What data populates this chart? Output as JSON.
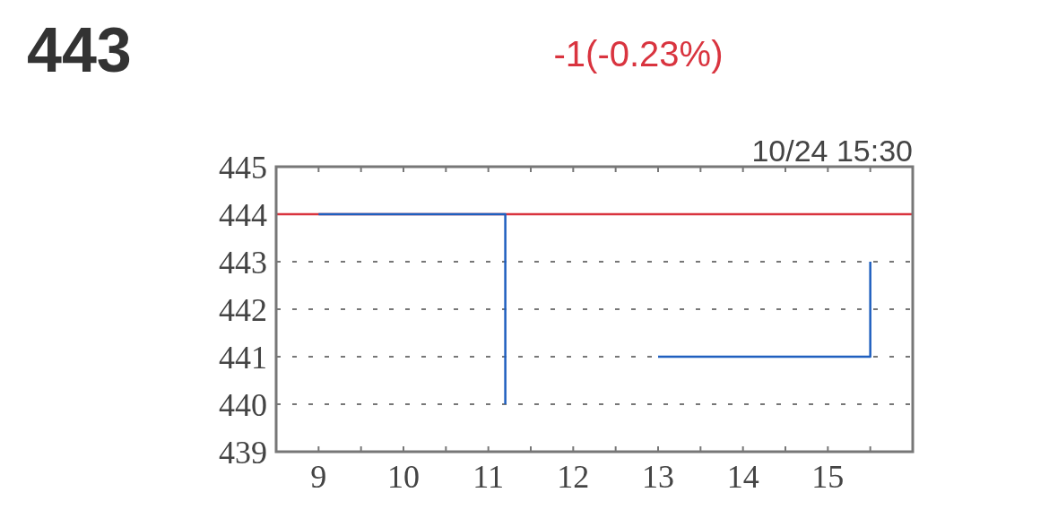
{
  "chart_data": {
    "type": "line",
    "title": "443",
    "subtitle": "-1(-0.23%)",
    "annotations": [
      "10/24 15:30"
    ],
    "x": [
      9,
      11.2,
      11.2,
      12,
      13,
      15.5,
      15.5
    ],
    "series": [
      {
        "color": "#1f5fbf",
        "values": [
          444,
          444,
          440,
          null,
          441,
          441,
          443
        ]
      }
    ],
    "ref_lines": [
      {
        "axis": "y",
        "value": 444,
        "color": "#d9343f"
      }
    ],
    "xlim": [
      8.5,
      16
    ],
    "xticks": [
      {
        "value": 8.5,
        "label": null
      },
      9,
      {
        "value": 9.5,
        "label": null
      },
      10,
      {
        "value": 10.5,
        "label": null
      },
      11,
      {
        "value": 11.5,
        "label": null
      },
      12,
      {
        "value": 12.5,
        "label": null
      },
      13,
      {
        "value": 13.5,
        "label": null
      },
      14,
      {
        "value": 14.5,
        "label": null
      },
      15,
      {
        "value": 15.5,
        "label": null
      }
    ],
    "ylim": [
      439,
      445
    ],
    "yticks": [
      439,
      440,
      441,
      442,
      443,
      444,
      445
    ],
    "grid": "y",
    "line_style": "solid",
    "marker": "none"
  }
}
